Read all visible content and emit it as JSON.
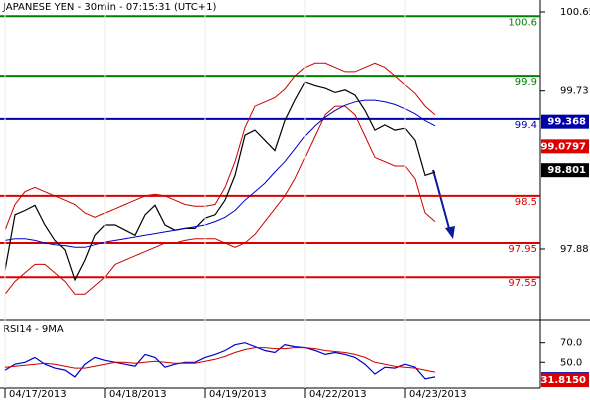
{
  "chart_data": [
    {
      "type": "line",
      "title": "JAPANESE YEN - 30min - 07:15:31 (UTC+1)",
      "x": [
        0,
        0.1,
        0.2,
        0.3,
        0.4,
        0.5,
        0.6,
        0.7,
        0.8,
        0.9,
        1,
        1.1,
        1.2,
        1.3,
        1.4,
        1.5,
        1.6,
        1.7,
        1.8,
        1.9,
        2,
        2.1,
        2.2,
        2.3,
        2.4,
        2.5,
        2.6,
        2.7,
        2.8,
        2.9,
        3,
        3.1,
        3.2,
        3.3,
        3.4,
        3.5,
        3.6,
        3.7,
        3.8,
        3.9,
        4,
        4.1,
        4.2,
        4.3
      ],
      "xlim": [
        0,
        5.35
      ],
      "ylim": [
        97.05,
        100.79
      ],
      "yticks": [
        97.88,
        99.73,
        100.65
      ],
      "series": [
        {
          "color": "#000000",
          "values": [
            97.63,
            98.28,
            98.33,
            98.39,
            98.16,
            97.98,
            97.87,
            97.52,
            97.75,
            98.04,
            98.16,
            98.16,
            98.1,
            98.04,
            98.28,
            98.39,
            98.16,
            98.1,
            98.12,
            98.12,
            98.24,
            98.28,
            98.45,
            98.74,
            99.21,
            99.27,
            99.15,
            99.03,
            99.38,
            99.62,
            99.83,
            99.79,
            99.76,
            99.71,
            99.74,
            99.68,
            99.5,
            99.27,
            99.33,
            99.27,
            99.29,
            99.15,
            98.74,
            98.78
          ]
        },
        {
          "color": "#cc0000",
          "values": [
            98.1,
            98.4,
            98.55,
            98.6,
            98.55,
            98.5,
            98.45,
            98.4,
            98.3,
            98.25,
            98.3,
            98.35,
            98.4,
            98.45,
            98.5,
            98.52,
            98.5,
            98.45,
            98.4,
            98.38,
            98.38,
            98.4,
            98.6,
            98.9,
            99.3,
            99.55,
            99.6,
            99.65,
            99.75,
            99.9,
            100.0,
            100.05,
            100.05,
            100.0,
            99.95,
            99.95,
            100.0,
            100.05,
            100.0,
            99.9,
            99.8,
            99.7,
            99.55,
            99.45
          ]
        },
        {
          "color": "#cc0000",
          "values": [
            97.35,
            97.5,
            97.6,
            97.7,
            97.7,
            97.6,
            97.5,
            97.35,
            97.35,
            97.45,
            97.55,
            97.7,
            97.75,
            97.8,
            97.85,
            97.9,
            97.95,
            97.95,
            97.98,
            98.0,
            98.0,
            98.0,
            97.95,
            97.9,
            97.95,
            98.05,
            98.2,
            98.35,
            98.5,
            98.7,
            98.95,
            99.2,
            99.45,
            99.55,
            99.55,
            99.45,
            99.2,
            98.95,
            98.9,
            98.85,
            98.85,
            98.7,
            98.3,
            98.2
          ]
        },
        {
          "color": "#0000cc",
          "values": [
            97.98,
            98.0,
            98.0,
            97.98,
            97.95,
            97.93,
            97.92,
            97.9,
            97.9,
            97.93,
            97.96,
            97.98,
            98.0,
            98.02,
            98.04,
            98.06,
            98.08,
            98.1,
            98.12,
            98.14,
            98.16,
            98.2,
            98.25,
            98.33,
            98.45,
            98.55,
            98.65,
            98.78,
            98.9,
            99.05,
            99.2,
            99.32,
            99.42,
            99.5,
            99.56,
            99.6,
            99.62,
            99.62,
            99.6,
            99.57,
            99.52,
            99.46,
            99.38,
            99.32
          ]
        }
      ],
      "levels": [
        {
          "value": 100.6,
          "color": "#008000"
        },
        {
          "value": 99.9,
          "color": "#008000"
        },
        {
          "value": 99.4,
          "color": "#0000aa"
        },
        {
          "value": 98.5,
          "color": "#dd0000"
        },
        {
          "value": 97.95,
          "color": "#dd0000"
        },
        {
          "value": 97.55,
          "color": "#dd0000"
        }
      ],
      "markers": [
        {
          "value": 99.368,
          "color": "#0000aa"
        },
        {
          "value": 99.0797,
          "color": "#dd0000"
        },
        {
          "value": 98.801,
          "color": "#000000"
        }
      ]
    },
    {
      "type": "line",
      "title": "RSI14 - 9MA",
      "x": [
        0,
        0.1,
        0.2,
        0.3,
        0.4,
        0.5,
        0.6,
        0.7,
        0.8,
        0.9,
        1,
        1.1,
        1.2,
        1.3,
        1.4,
        1.5,
        1.6,
        1.7,
        1.8,
        1.9,
        2,
        2.1,
        2.2,
        2.3,
        2.4,
        2.5,
        2.6,
        2.7,
        2.8,
        2.9,
        3,
        3.1,
        3.2,
        3.3,
        3.4,
        3.5,
        3.6,
        3.7,
        3.8,
        3.9,
        4,
        4.1,
        4.2,
        4.3
      ],
      "xlim": [
        0,
        5.35
      ],
      "xticks": [
        {
          "value": 0,
          "label": "04/17/2013"
        },
        {
          "value": 1,
          "label": "04/18/2013"
        },
        {
          "value": 2,
          "label": "04/19/2013"
        },
        {
          "value": 3,
          "label": "04/22/2013"
        },
        {
          "value": 4,
          "label": "04/23/2013"
        }
      ],
      "ylim": [
        23.7,
        93.2
      ],
      "yticks": [
        {
          "value": 70,
          "label": "70.0"
        },
        {
          "value": 50,
          "label": "50.0"
        }
      ],
      "series": [
        {
          "color": "#0000cc",
          "values": [
            42,
            48,
            50,
            55,
            48,
            44,
            42,
            35,
            48,
            55,
            52,
            50,
            48,
            46,
            58,
            55,
            45,
            48,
            50,
            50,
            55,
            58,
            62,
            68,
            70,
            66,
            62,
            60,
            68,
            66,
            65,
            62,
            58,
            60,
            58,
            55,
            48,
            38,
            45,
            44,
            48,
            45,
            33,
            35
          ]
        },
        {
          "color": "#cc0000",
          "values": [
            45,
            46,
            47,
            48,
            49,
            48,
            46,
            44,
            44,
            46,
            48,
            50,
            50,
            49,
            50,
            51,
            50,
            49,
            49,
            49,
            51,
            53,
            56,
            60,
            63,
            65,
            65,
            64,
            64,
            65,
            65,
            64,
            62,
            61,
            60,
            58,
            55,
            50,
            48,
            46,
            45,
            44,
            42,
            40
          ]
        }
      ],
      "markers": [
        {
          "value": 32.7502,
          "color": "#0000aa"
        },
        {
          "value": 31.815,
          "label": "31.8150",
          "color": "#dd0000"
        }
      ]
    }
  ]
}
